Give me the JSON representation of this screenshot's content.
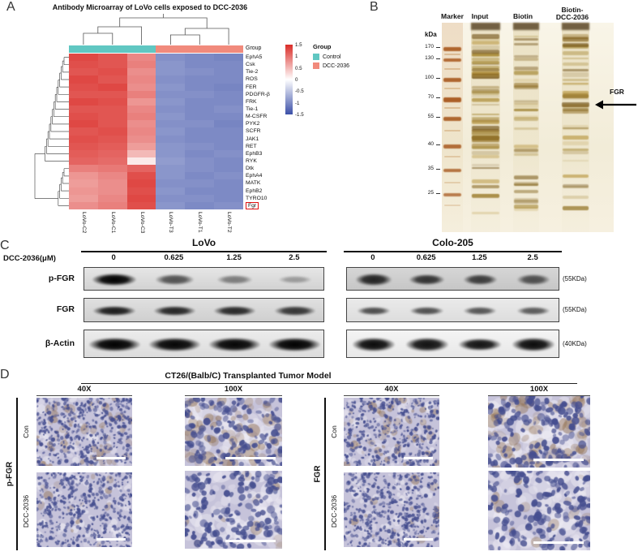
{
  "panel_a": {
    "label": "A",
    "title": "Antibody Microarray of LoVo cells exposed to DCC-2036",
    "annotation_label": "Group",
    "legend": {
      "title": "Group",
      "items": [
        {
          "label": "Control",
          "color": "#60c7c2"
        },
        {
          "label": "DCC-2036",
          "color": "#f18a7c"
        }
      ]
    },
    "scale_ticks": [
      "1.5",
      "1",
      "0.5",
      "0",
      "-0.5",
      "-1",
      "-1.5"
    ],
    "highlight_row": "Fgr",
    "highlight_color": "#e01010"
  },
  "chart_data": {
    "type": "heatmap",
    "title": "Antibody Microarray of LoVo cells exposed to DCC-2036",
    "rows": [
      "EphA5",
      "Csk",
      "Tie-2",
      "ROS",
      "FER",
      "PDGFR-β",
      "FRK",
      "Tie-1",
      "M-CSFR",
      "PYK2",
      "SCFR",
      "JAK1",
      "RET",
      "EphB3",
      "RYK",
      "Dtk",
      "EphA4",
      "MATK",
      "EphB2",
      "TYRO10",
      "Fgr"
    ],
    "columns": [
      "LoVo-C2",
      "LoVo-C1",
      "LoVo-C3",
      "LoVo-T3",
      "LoVo-T1",
      "LoVo-T2"
    ],
    "column_groups": [
      "Control",
      "Control",
      "Control",
      "DCC-2036",
      "DCC-2036",
      "DCC-2036"
    ],
    "zlim": [
      -1.5,
      1.5
    ],
    "colors": {
      "high": "#da2c27",
      "mid": "#ffffff",
      "low": "#3c50a8"
    },
    "values": [
      [
        1.3,
        1.2,
        0.85,
        -0.95,
        -1.0,
        -1.05
      ],
      [
        1.25,
        1.2,
        0.9,
        -0.9,
        -1.0,
        -1.0
      ],
      [
        1.2,
        1.25,
        0.8,
        -0.9,
        -0.95,
        -1.0
      ],
      [
        1.3,
        1.2,
        0.85,
        -0.95,
        -1.0,
        -1.0
      ],
      [
        1.25,
        1.3,
        0.8,
        -0.9,
        -1.0,
        -1.05
      ],
      [
        1.2,
        1.2,
        0.9,
        -0.95,
        -0.95,
        -1.0
      ],
      [
        1.3,
        1.25,
        0.75,
        -0.9,
        -1.0,
        -1.0
      ],
      [
        1.2,
        1.2,
        0.85,
        -0.95,
        -1.0,
        -0.95
      ],
      [
        1.25,
        1.2,
        0.9,
        -0.9,
        -1.0,
        -1.0
      ],
      [
        1.3,
        1.2,
        0.8,
        -0.95,
        -0.95,
        -1.05
      ],
      [
        1.2,
        1.25,
        0.85,
        -0.9,
        -1.0,
        -1.0
      ],
      [
        1.25,
        1.2,
        0.8,
        -0.95,
        -1.0,
        -1.0
      ],
      [
        1.2,
        1.15,
        0.7,
        -0.9,
        -0.95,
        -1.0
      ],
      [
        1.15,
        1.1,
        0.5,
        -0.9,
        -1.0,
        -0.95
      ],
      [
        1.1,
        1.05,
        0.15,
        -0.85,
        -0.95,
        -1.0
      ],
      [
        0.9,
        0.95,
        1.1,
        -0.9,
        -0.95,
        -1.0
      ],
      [
        0.75,
        0.85,
        1.25,
        -0.9,
        -1.0,
        -0.95
      ],
      [
        0.7,
        0.8,
        1.3,
        -0.95,
        -0.95,
        -1.0
      ],
      [
        0.75,
        0.8,
        1.25,
        -0.9,
        -1.0,
        -1.0
      ],
      [
        0.7,
        0.85,
        1.3,
        -0.95,
        -0.95,
        -1.0
      ],
      [
        0.8,
        0.9,
        1.25,
        -0.9,
        -1.0,
        -0.95
      ]
    ]
  },
  "panel_b": {
    "label": "B",
    "lanes": [
      "Marker",
      "Input",
      "Biotin",
      "Biotin-\nDCC-2036"
    ],
    "unit_label": "kDa",
    "marker_weights": [
      "170",
      "130",
      "100",
      "70",
      "55",
      "40",
      "35",
      "25"
    ],
    "band_annotation": "FGR",
    "colors": {
      "gel_bg": "#f7f1e0",
      "band": "#8a6414",
      "marker": "#a5541c"
    }
  },
  "panel_c": {
    "label": "C",
    "dose_label": "DCC-2036(μM)",
    "blots": [
      {
        "cell_line": "LoVo",
        "doses": [
          "0",
          "0.625",
          "1.25",
          "2.5"
        ]
      },
      {
        "cell_line": "Colo-205",
        "doses": [
          "0",
          "0.625",
          "1.25",
          "2.5"
        ]
      }
    ],
    "rows": [
      {
        "label": "p-FGR",
        "size": "(55KDa)"
      },
      {
        "label": "FGR",
        "size": "(55KDa)"
      },
      {
        "label": "β-Actin",
        "size": "(40KDa)"
      }
    ],
    "band_intensities": {
      "LoVo": {
        "p-FGR": [
          1.0,
          0.55,
          0.32,
          0.15
        ],
        "FGR": [
          0.85,
          0.8,
          0.78,
          0.72
        ],
        "β-Actin": [
          1,
          0.98,
          0.98,
          1
        ]
      },
      "Colo-205": {
        "p-FGR": [
          0.8,
          0.72,
          0.66,
          0.55
        ],
        "FGR": [
          0.6,
          0.58,
          0.55,
          0.52
        ],
        "β-Actin": [
          0.95,
          0.92,
          0.9,
          0.95
        ]
      }
    }
  },
  "panel_d": {
    "label": "D",
    "title": "CT26/(Balb/C) Transplanted Tumor Model",
    "column_headers": [
      "40X",
      "100X",
      "40X",
      "100X"
    ],
    "groups": [
      {
        "label": "p-FGR",
        "rows": [
          "Con",
          "DCC-2036"
        ]
      },
      {
        "label": "FGR",
        "rows": [
          "Con",
          "DCC-2036"
        ]
      }
    ],
    "stain_colors": {
      "background": "#c6c3da",
      "hematoxylin": "#454e8f",
      "dab": "#8c6946",
      "light": "#eeecf4"
    }
  }
}
